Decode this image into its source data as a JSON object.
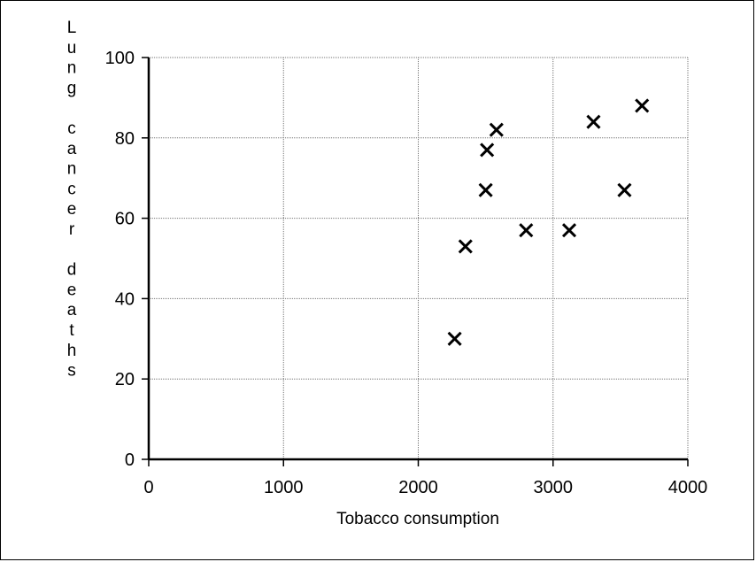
{
  "chart_data": {
    "type": "scatter",
    "title": "",
    "xlabel": "Tobacco consumption",
    "ylabel": "Lung cancer deaths",
    "xlim": [
      0,
      4000
    ],
    "ylim": [
      0,
      100
    ],
    "x_ticks": [
      "0",
      "1000",
      "2000",
      "3000",
      "4000"
    ],
    "y_ticks": [
      "0",
      "20",
      "40",
      "60",
      "80",
      "100"
    ],
    "grid": true,
    "marker": "x",
    "points": [
      {
        "x": 2270,
        "y": 30
      },
      {
        "x": 2350,
        "y": 53
      },
      {
        "x": 2500,
        "y": 67
      },
      {
        "x": 2510,
        "y": 77
      },
      {
        "x": 2580,
        "y": 82
      },
      {
        "x": 2800,
        "y": 57
      },
      {
        "x": 3120,
        "y": 57
      },
      {
        "x": 3300,
        "y": 84
      },
      {
        "x": 3530,
        "y": 67
      },
      {
        "x": 3660,
        "y": 88
      }
    ]
  }
}
